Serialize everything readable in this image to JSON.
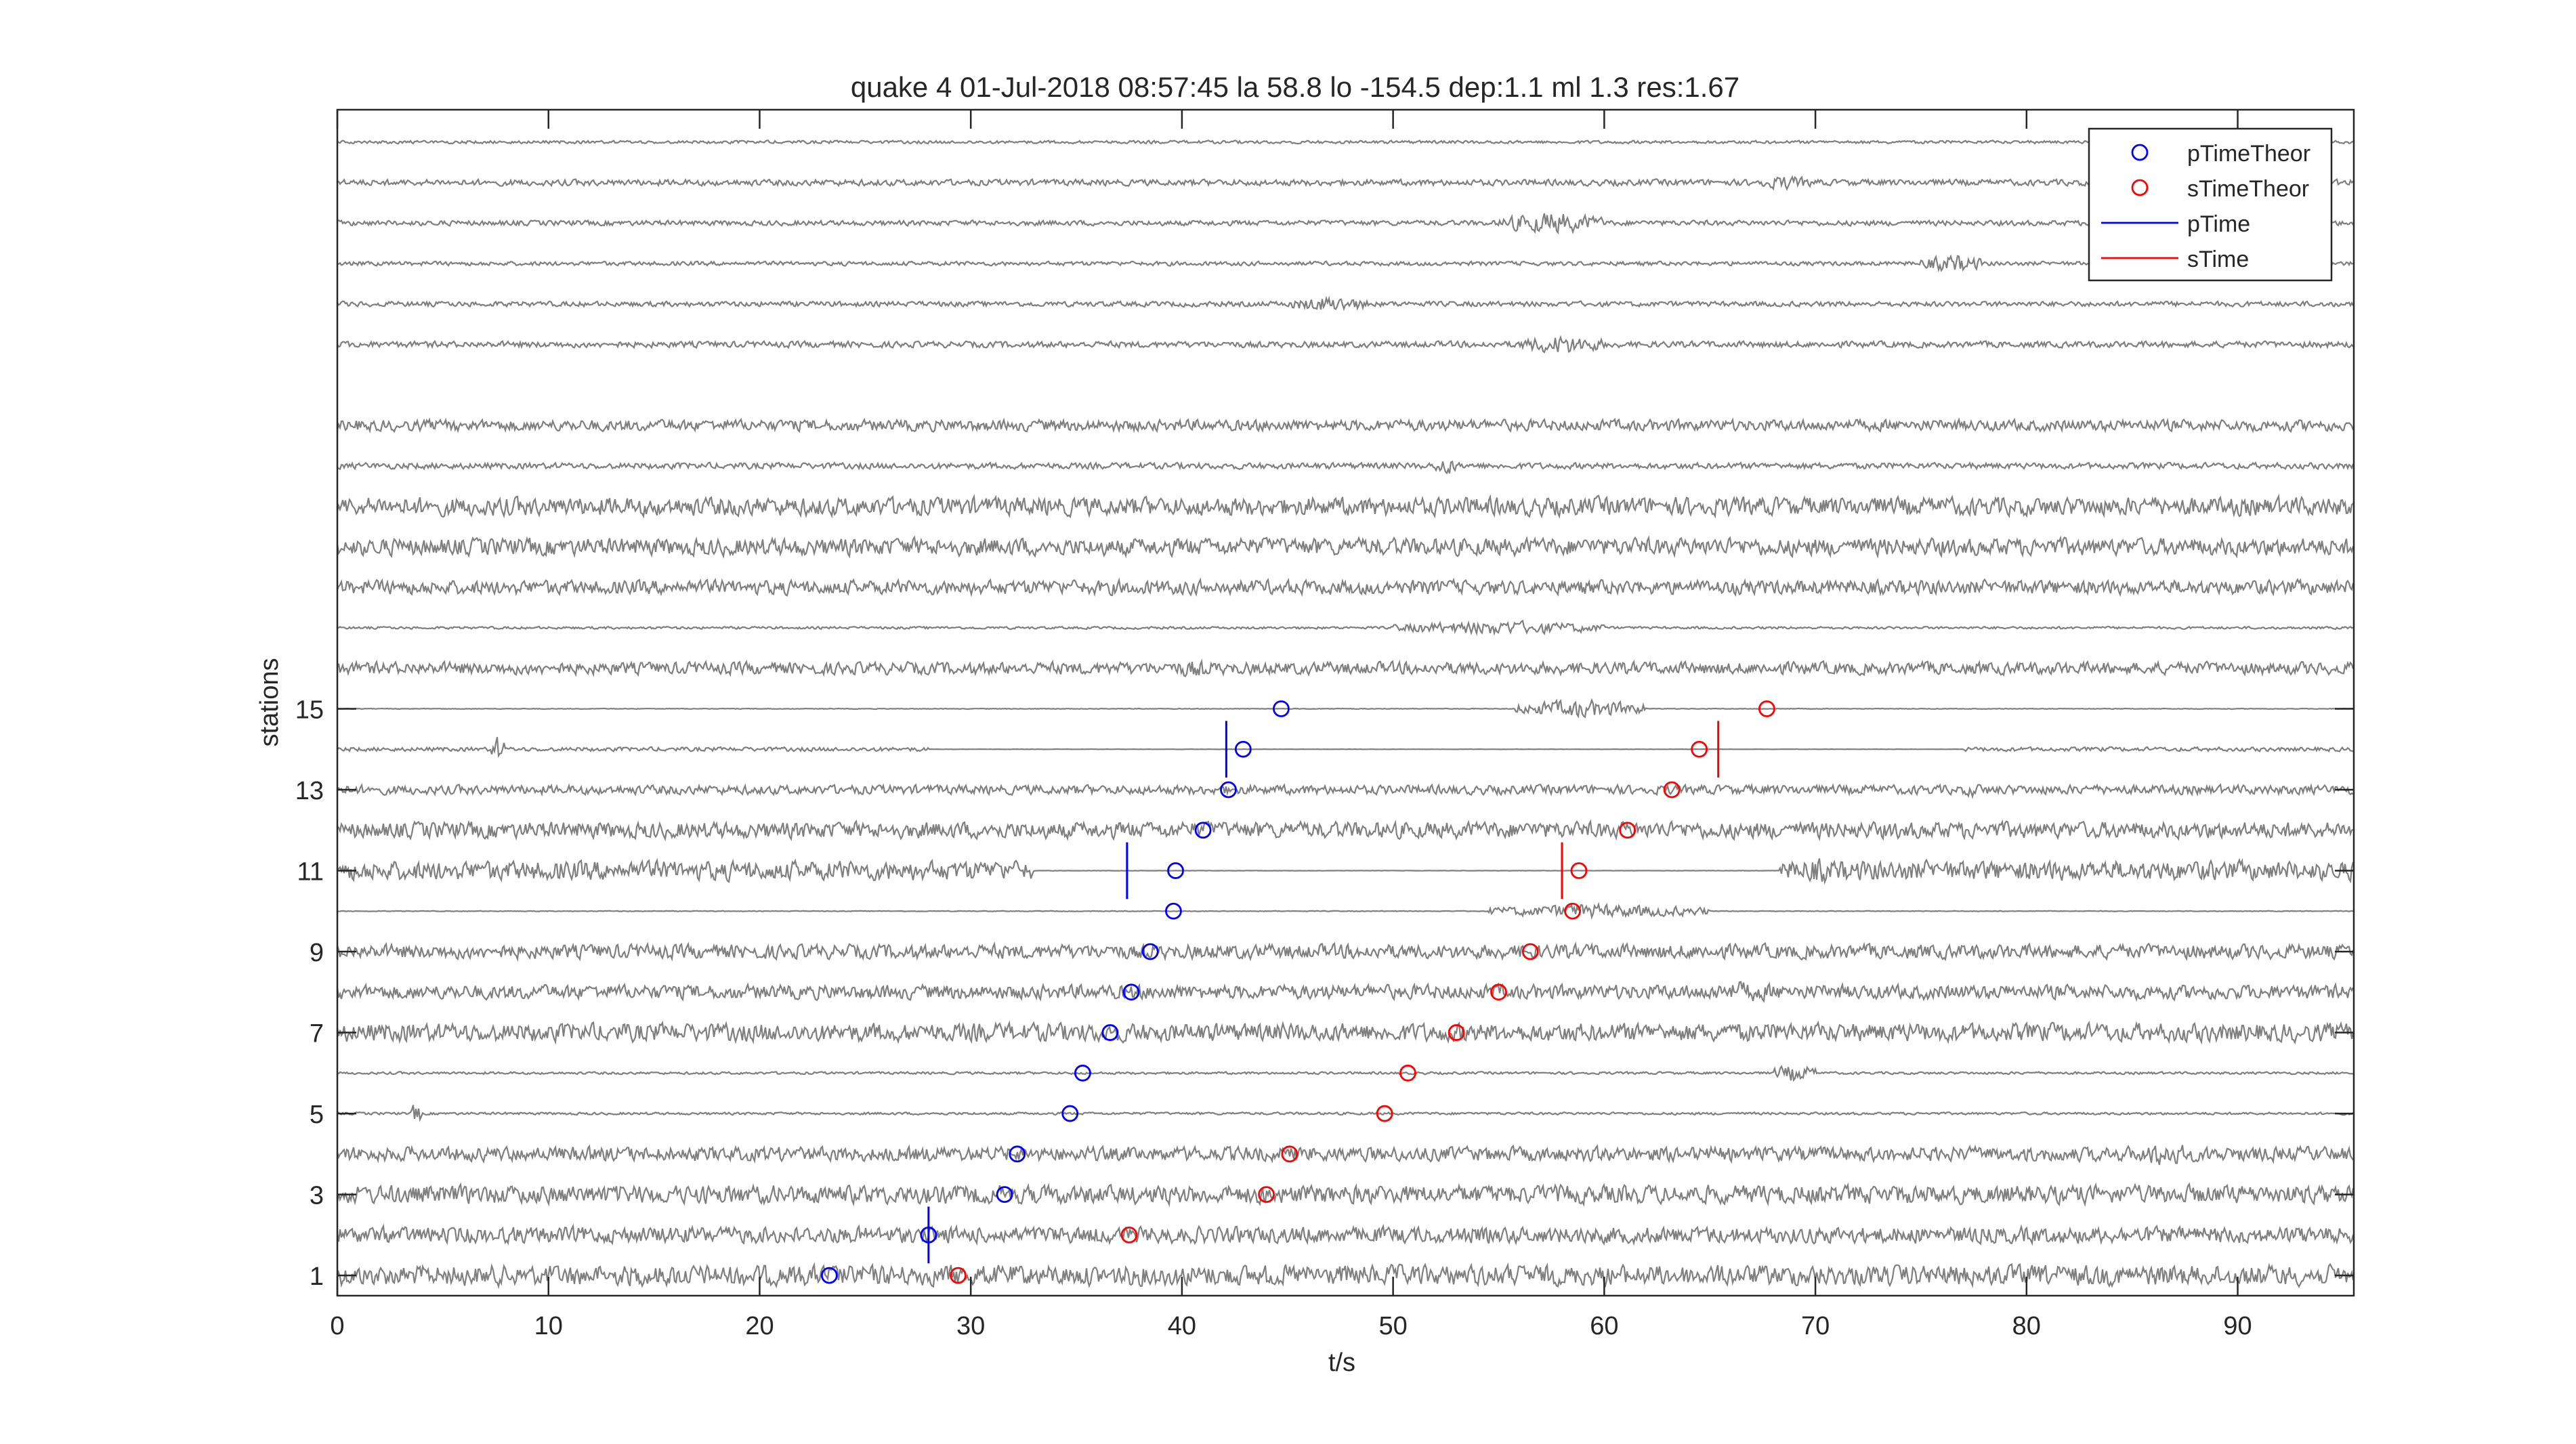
{
  "chart_data": {
    "type": "scatter",
    "title": "quake 4 01-Jul-2018 08:57:45  la 58.8 lo -154.5 dep:1.1 ml 1.3 res:1.67",
    "xlabel": "t/s",
    "ylabel": "stations",
    "xlim": [
      0,
      95.5
    ],
    "ylim": [
      0.5,
      29.8
    ],
    "grid": false,
    "legend_position": "top-right",
    "x_ticks": [
      0,
      10,
      20,
      30,
      40,
      50,
      60,
      70,
      80,
      90
    ],
    "y_ticks": [
      1,
      3,
      5,
      7,
      9,
      11,
      13,
      15
    ],
    "x_tick_labels": [
      "0",
      "10",
      "20",
      "30",
      "40",
      "50",
      "60",
      "70",
      "80",
      "90"
    ],
    "y_tick_labels": [
      "1",
      "3",
      "5",
      "7",
      "9",
      "11",
      "13",
      "15"
    ],
    "colors": {
      "trace": "#7f7f7f",
      "p": "#0000ff",
      "s": "#ff0000",
      "axis": "#262626"
    },
    "legend": [
      {
        "label": "pTimeTheor",
        "marker": "circle",
        "color": "#0000ff"
      },
      {
        "label": "sTimeTheor",
        "marker": "circle",
        "color": "#ff0000"
      },
      {
        "label": "pTime",
        "marker": "line",
        "color": "#0000ff"
      },
      {
        "label": "sTime",
        "marker": "line",
        "color": "#ff0000"
      }
    ],
    "series": [
      {
        "name": "pTimeTheor",
        "marker": "circle",
        "points": [
          {
            "x": 23.3,
            "y": 1
          },
          {
            "x": 28.0,
            "y": 2
          },
          {
            "x": 31.6,
            "y": 3
          },
          {
            "x": 32.2,
            "y": 4
          },
          {
            "x": 34.7,
            "y": 5
          },
          {
            "x": 35.3,
            "y": 6
          },
          {
            "x": 36.6,
            "y": 7
          },
          {
            "x": 37.6,
            "y": 8
          },
          {
            "x": 38.5,
            "y": 9
          },
          {
            "x": 39.6,
            "y": 10
          },
          {
            "x": 39.7,
            "y": 11
          },
          {
            "x": 41.0,
            "y": 12
          },
          {
            "x": 42.2,
            "y": 13
          },
          {
            "x": 42.9,
            "y": 14
          },
          {
            "x": 44.7,
            "y": 15
          }
        ]
      },
      {
        "name": "sTimeTheor",
        "marker": "circle",
        "points": [
          {
            "x": 29.4,
            "y": 1
          },
          {
            "x": 37.5,
            "y": 2
          },
          {
            "x": 44.0,
            "y": 3
          },
          {
            "x": 45.1,
            "y": 4
          },
          {
            "x": 49.6,
            "y": 5
          },
          {
            "x": 50.7,
            "y": 6
          },
          {
            "x": 53.0,
            "y": 7
          },
          {
            "x": 55.0,
            "y": 8
          },
          {
            "x": 56.5,
            "y": 9
          },
          {
            "x": 58.5,
            "y": 10
          },
          {
            "x": 58.8,
            "y": 11
          },
          {
            "x": 61.1,
            "y": 12
          },
          {
            "x": 63.2,
            "y": 13
          },
          {
            "x": 64.5,
            "y": 14
          },
          {
            "x": 67.7,
            "y": 15
          }
        ]
      },
      {
        "name": "pTime",
        "marker": "vline",
        "points": [
          {
            "x": 28.0,
            "y": 2
          },
          {
            "x": 37.4,
            "y": 11
          },
          {
            "x": 42.1,
            "y": 14
          }
        ]
      },
      {
        "name": "sTime",
        "marker": "vline",
        "points": [
          {
            "x": 58.0,
            "y": 11
          },
          {
            "x": 65.4,
            "y": 14
          }
        ]
      }
    ],
    "trace_stations": [
      1,
      2,
      3,
      4,
      5,
      6,
      7,
      8,
      9,
      10,
      11,
      12,
      13,
      14,
      15,
      16,
      17,
      18,
      19,
      20,
      21,
      22,
      24,
      25,
      26,
      27,
      28,
      29
    ],
    "trace_activity": [
      {
        "station": 1,
        "base": 1.0
      },
      {
        "station": 2,
        "base": 0.8
      },
      {
        "station": 3,
        "base": 0.9,
        "bursts": [
          [
            24,
            26,
            1.0
          ],
          [
            76,
            79,
            0.9
          ]
        ]
      },
      {
        "station": 4,
        "base": 0.7,
        "bursts": [
          [
            85,
            88,
            1.3
          ]
        ]
      },
      {
        "station": 5,
        "base": 0.12,
        "bursts": [
          [
            3.5,
            4,
            1.2
          ]
        ]
      },
      {
        "station": 6,
        "base": 0.12,
        "bursts": [
          [
            68,
            70,
            0.9
          ]
        ]
      },
      {
        "station": 7,
        "base": 0.9
      },
      {
        "station": 8,
        "base": 0.7,
        "bursts": [
          [
            63,
            70,
            1.0
          ]
        ]
      },
      {
        "station": 9,
        "base": 0.7,
        "bursts": [
          [
            62,
            66,
            0.8
          ]
        ]
      },
      {
        "station": 10,
        "base": 0.03,
        "bursts": [
          [
            54.5,
            65,
            0.7
          ]
        ]
      },
      {
        "station": 11,
        "base": 0.95,
        "quiet": [
          33,
          68.3
        ],
        "bursts": [
          [
            68.3,
            72,
            1.3
          ]
        ]
      },
      {
        "station": 12,
        "base": 0.8
      },
      {
        "station": 13,
        "base": 0.45,
        "bursts": [
          [
            77,
            78,
            0.8
          ]
        ]
      },
      {
        "station": 14,
        "base": 0.2,
        "quiet": [
          28,
          77
        ],
        "bursts": [
          [
            7.3,
            7.9,
            1.4
          ]
        ]
      },
      {
        "station": 15,
        "base": 0.03,
        "bursts": [
          [
            55.8,
            62,
            0.9
          ]
        ]
      },
      {
        "station": 16,
        "base": 0.6,
        "bursts": [
          [
            39,
            42,
            0.9
          ]
        ]
      },
      {
        "station": 17,
        "base": 0.12,
        "bursts": [
          [
            50,
            60,
            0.7
          ]
        ]
      },
      {
        "station": 18,
        "base": 0.7
      },
      {
        "station": 19,
        "base": 0.85
      },
      {
        "station": 20,
        "base": 0.9
      },
      {
        "station": 21,
        "base": 0.3,
        "bursts": [
          [
            52,
            53,
            1.0
          ]
        ]
      },
      {
        "station": 22,
        "base": 0.55
      },
      {
        "station": 24,
        "base": 0.3,
        "bursts": [
          [
            56,
            60,
            1.0
          ]
        ]
      },
      {
        "station": 25,
        "base": 0.25,
        "bursts": [
          [
            45,
            49,
            0.8
          ]
        ]
      },
      {
        "station": 26,
        "base": 0.2,
        "bursts": [
          [
            75,
            78,
            0.9
          ]
        ]
      },
      {
        "station": 27,
        "base": 0.25,
        "bursts": [
          [
            55,
            60,
            1.1
          ]
        ]
      },
      {
        "station": 28,
        "base": 0.3,
        "bursts": [
          [
            67,
            70,
            0.7
          ]
        ]
      },
      {
        "station": 29,
        "base": 0.15
      }
    ]
  }
}
